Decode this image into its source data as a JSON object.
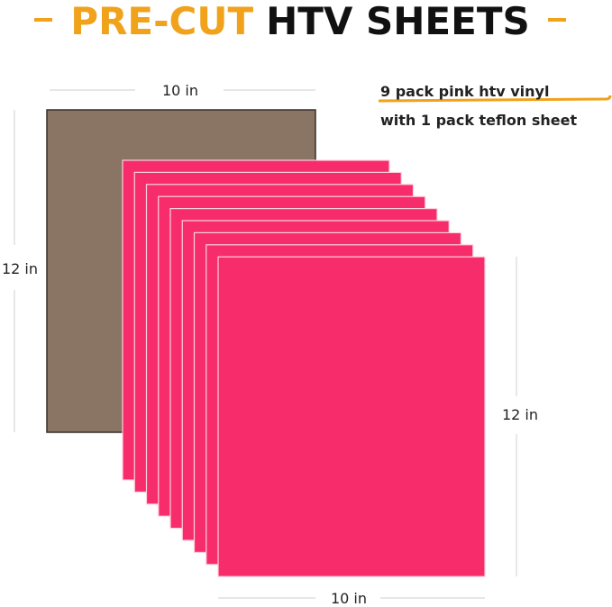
{
  "header": {
    "title_highlight": "PRE-CUT",
    "title_rest": "HTV SHEETS"
  },
  "description": {
    "line1": "9 pack pink htv vinyl",
    "line2": "with 1 pack teflon sheet"
  },
  "dimensions": {
    "teflon_width": "10 in",
    "teflon_height": "12 in",
    "vinyl_height": "12 in",
    "vinyl_width": "10 in"
  }
}
